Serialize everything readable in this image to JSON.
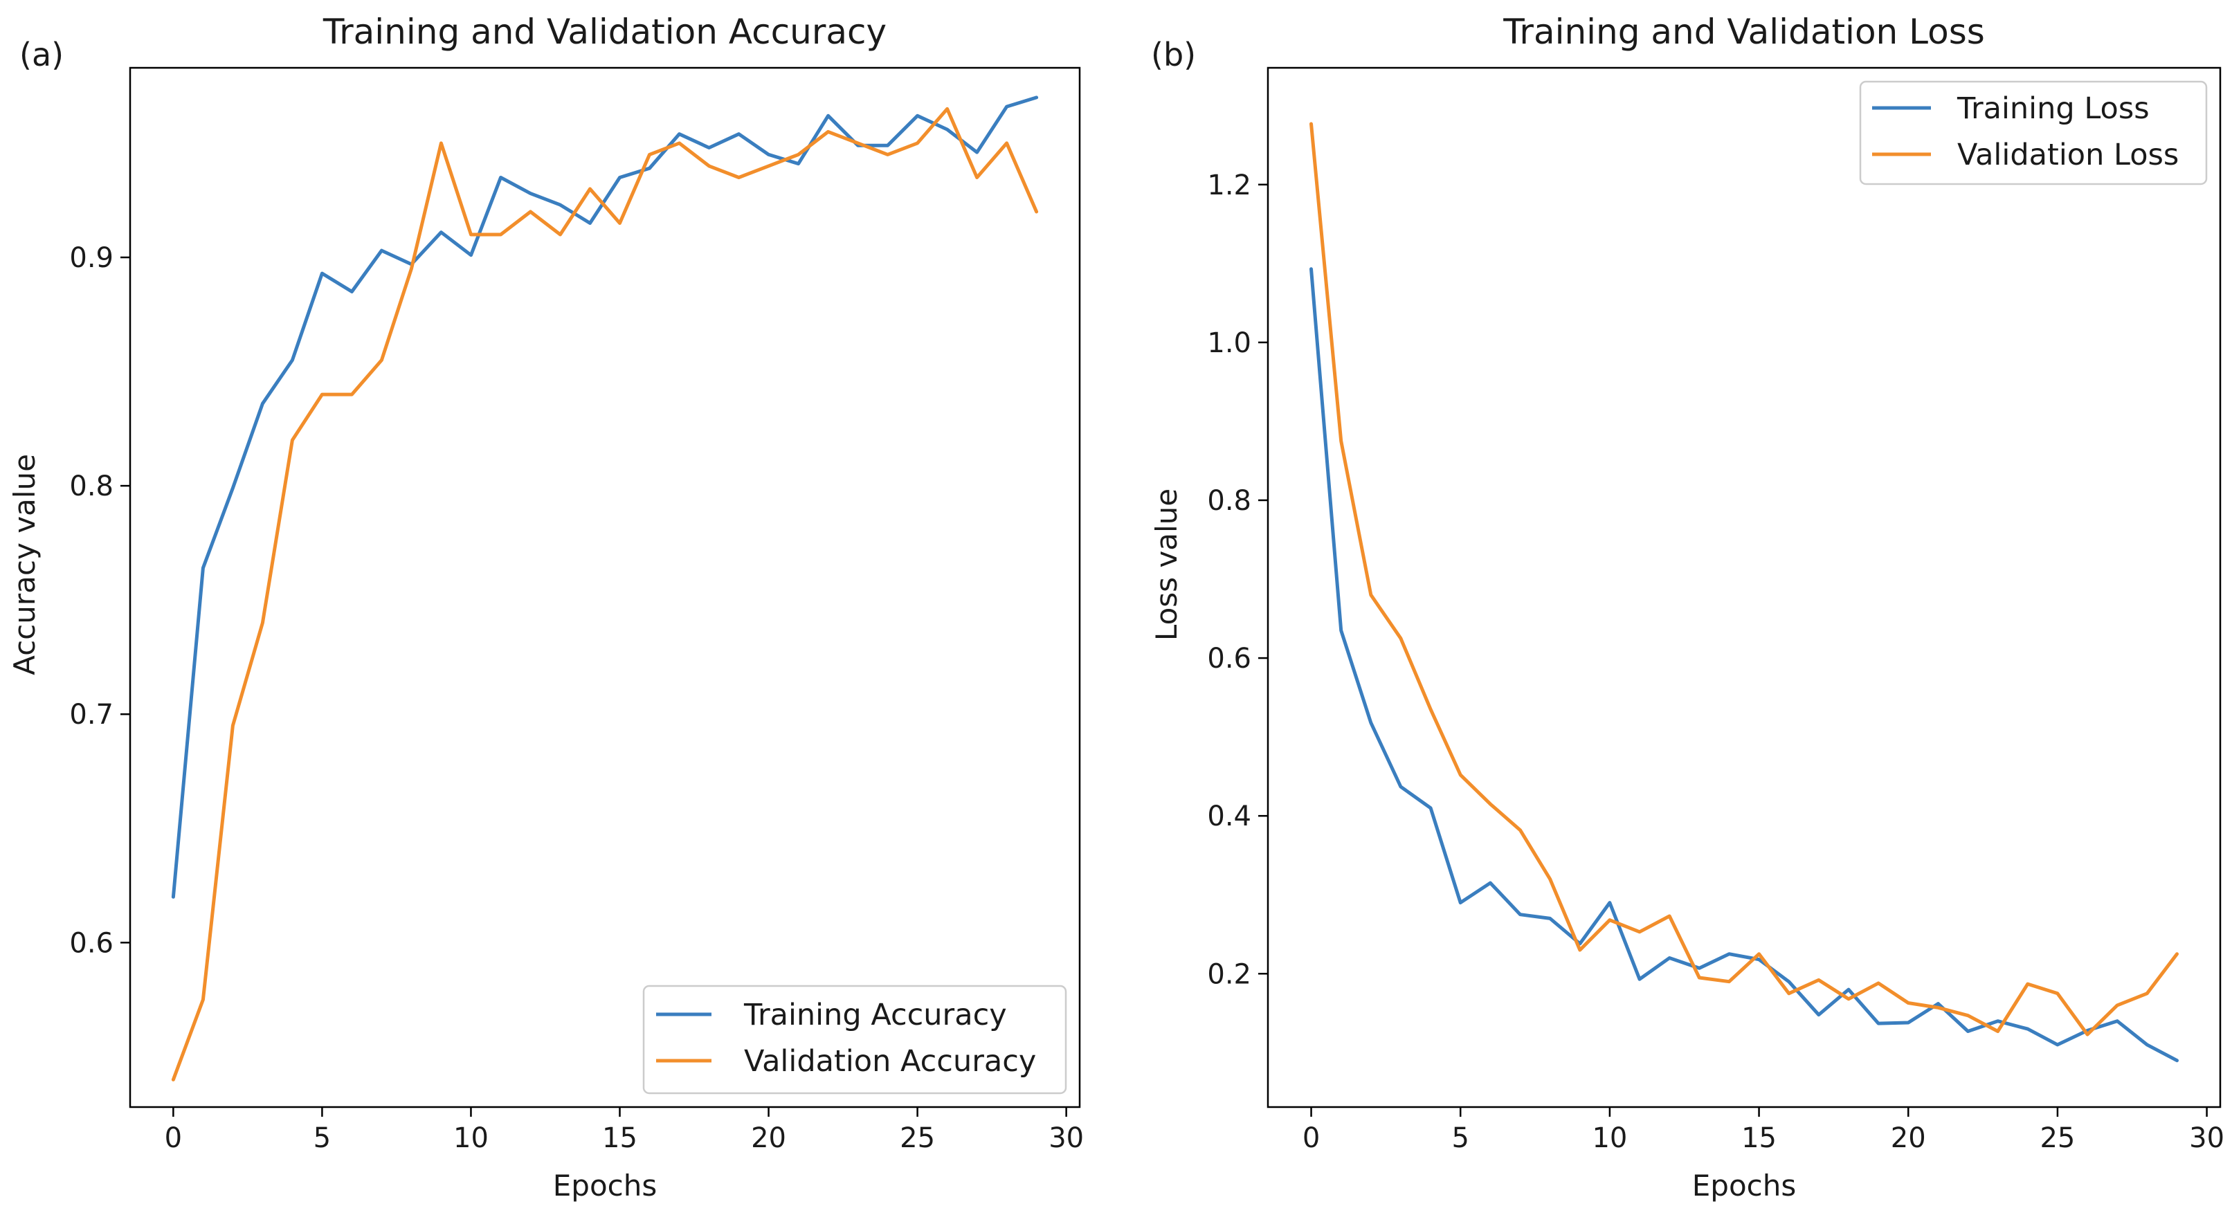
{
  "colors": {
    "training": "#3a7ebf",
    "validation": "#f28e2b",
    "axis": "#000000",
    "legend_border": "#cccccc"
  },
  "chart_data": [
    {
      "panel_label": "(a)",
      "type": "line",
      "title": "Training and Validation Accuracy",
      "xlabel": "Epochs",
      "ylabel": "Accuracy value",
      "xlim": [
        -1.45,
        30.45
      ],
      "ylim": [
        0.528,
        0.983
      ],
      "xticks": [
        0,
        5,
        10,
        15,
        20,
        25,
        30
      ],
      "xtick_labels": [
        "0",
        "5",
        "10",
        "15",
        "20",
        "25",
        "30"
      ],
      "yticks": [
        0.6,
        0.7,
        0.8,
        0.9
      ],
      "ytick_labels": [
        "0.6",
        "0.7",
        "0.8",
        "0.9"
      ],
      "grid": false,
      "legend_position": "lower-right",
      "x": [
        0,
        1,
        2,
        3,
        4,
        5,
        6,
        7,
        8,
        9,
        10,
        11,
        12,
        13,
        14,
        15,
        16,
        17,
        18,
        19,
        20,
        21,
        22,
        23,
        24,
        25,
        26,
        27,
        28,
        29
      ],
      "series": [
        {
          "name": "Training Accuracy",
          "color": "#3a7ebf",
          "values": [
            0.62,
            0.764,
            0.799,
            0.836,
            0.855,
            0.893,
            0.885,
            0.903,
            0.897,
            0.911,
            0.901,
            0.935,
            0.928,
            0.923,
            0.915,
            0.935,
            0.939,
            0.954,
            0.948,
            0.954,
            0.945,
            0.941,
            0.962,
            0.949,
            0.949,
            0.962,
            0.956,
            0.946,
            0.966,
            0.97
          ]
        },
        {
          "name": "Validation Accuracy",
          "color": "#f28e2b",
          "values": [
            0.54,
            0.575,
            0.695,
            0.74,
            0.82,
            0.84,
            0.84,
            0.855,
            0.895,
            0.95,
            0.91,
            0.91,
            0.92,
            0.91,
            0.93,
            0.915,
            0.945,
            0.95,
            0.94,
            0.935,
            0.94,
            0.945,
            0.955,
            0.95,
            0.945,
            0.95,
            0.965,
            0.935,
            0.95,
            0.92
          ]
        }
      ]
    },
    {
      "panel_label": "(b)",
      "type": "line",
      "title": "Training and Validation Loss",
      "xlabel": "Epochs",
      "ylabel": "Loss value",
      "xlim": [
        -1.45,
        30.45
      ],
      "ylim": [
        0.031,
        1.348
      ],
      "xticks": [
        0,
        5,
        10,
        15,
        20,
        25,
        30
      ],
      "xtick_labels": [
        "0",
        "5",
        "10",
        "15",
        "20",
        "25",
        "30"
      ],
      "yticks": [
        0.2,
        0.4,
        0.6,
        0.8,
        1.0,
        1.2
      ],
      "ytick_labels": [
        "0.2",
        "0.4",
        "0.6",
        "0.8",
        "1.0",
        "1.2"
      ],
      "grid": false,
      "legend_position": "upper-right",
      "x": [
        0,
        1,
        2,
        3,
        4,
        5,
        6,
        7,
        8,
        9,
        10,
        11,
        12,
        13,
        14,
        15,
        16,
        17,
        18,
        19,
        20,
        21,
        22,
        23,
        24,
        25,
        26,
        27,
        28,
        29
      ],
      "series": [
        {
          "name": "Training Loss",
          "color": "#3a7ebf",
          "values": [
            1.093,
            0.635,
            0.518,
            0.437,
            0.41,
            0.29,
            0.315,
            0.275,
            0.27,
            0.238,
            0.29,
            0.193,
            0.22,
            0.207,
            0.225,
            0.218,
            0.19,
            0.148,
            0.18,
            0.137,
            0.138,
            0.162,
            0.127,
            0.14,
            0.13,
            0.11,
            0.128,
            0.14,
            0.11,
            0.09
          ]
        },
        {
          "name": "Validation Loss",
          "color": "#f28e2b",
          "values": [
            1.277,
            0.875,
            0.68,
            0.625,
            0.535,
            0.452,
            0.415,
            0.382,
            0.32,
            0.23,
            0.268,
            0.253,
            0.273,
            0.195,
            0.19,
            0.225,
            0.175,
            0.192,
            0.168,
            0.188,
            0.163,
            0.157,
            0.147,
            0.127,
            0.187,
            0.175,
            0.123,
            0.16,
            0.175,
            0.225
          ]
        }
      ]
    }
  ]
}
